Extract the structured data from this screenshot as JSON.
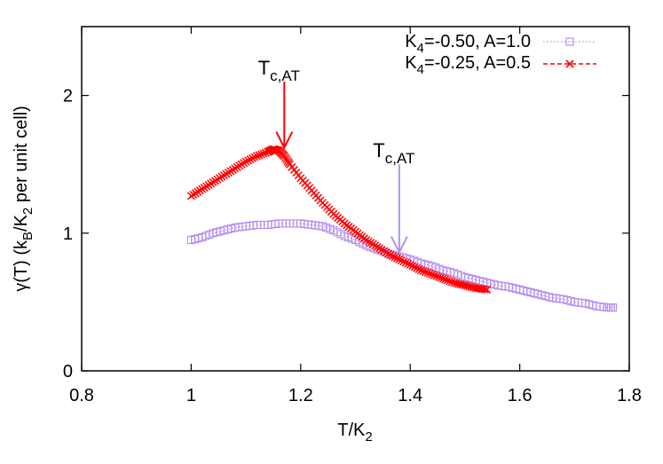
{
  "chart_data": {
    "type": "scatter",
    "xlabel": "T/K2",
    "ylabel": "γ(T) (kB/K2 per unit cell)",
    "xlim": [
      0.8,
      1.8
    ],
    "ylim": [
      0,
      2.5
    ],
    "xticks": [
      "0.8",
      "1",
      "1.2",
      "1.4",
      "1.6",
      "1.8"
    ],
    "yticks": [
      "0",
      "1",
      "2"
    ],
    "grid": false,
    "legend_position": "top-right",
    "series": [
      {
        "name": "K4=-0.50, A=1.0",
        "color": "#b68ff0",
        "marker": "square",
        "line": "dotted",
        "x": [
          1.0,
          1.02,
          1.04,
          1.06,
          1.08,
          1.1,
          1.12,
          1.14,
          1.16,
          1.18,
          1.2,
          1.22,
          1.24,
          1.26,
          1.28,
          1.3,
          1.32,
          1.34,
          1.36,
          1.38,
          1.4,
          1.42,
          1.44,
          1.46,
          1.48,
          1.5,
          1.52,
          1.54,
          1.56,
          1.58,
          1.6,
          1.62,
          1.64,
          1.66,
          1.68,
          1.7,
          1.72,
          1.74,
          1.76,
          1.77
        ],
        "y": [
          0.95,
          0.97,
          1.0,
          1.02,
          1.04,
          1.05,
          1.06,
          1.06,
          1.07,
          1.07,
          1.07,
          1.06,
          1.05,
          1.02,
          0.98,
          0.95,
          0.91,
          0.88,
          0.85,
          0.83,
          0.81,
          0.78,
          0.76,
          0.73,
          0.71,
          0.68,
          0.66,
          0.64,
          0.62,
          0.61,
          0.59,
          0.57,
          0.55,
          0.53,
          0.52,
          0.5,
          0.49,
          0.47,
          0.46,
          0.46
        ]
      },
      {
        "name": "K4=-0.25, A=0.5",
        "color": "#ff0000",
        "marker": "cross",
        "line": "dashed",
        "x": [
          1.0,
          1.02,
          1.04,
          1.06,
          1.08,
          1.1,
          1.12,
          1.14,
          1.15,
          1.16,
          1.17,
          1.18,
          1.2,
          1.22,
          1.24,
          1.26,
          1.28,
          1.3,
          1.32,
          1.34,
          1.36,
          1.38,
          1.4,
          1.42,
          1.44,
          1.46,
          1.48,
          1.5,
          1.52,
          1.54
        ],
        "y": [
          1.27,
          1.32,
          1.37,
          1.42,
          1.47,
          1.52,
          1.56,
          1.59,
          1.61,
          1.6,
          1.56,
          1.5,
          1.4,
          1.31,
          1.22,
          1.14,
          1.07,
          1.01,
          0.95,
          0.9,
          0.85,
          0.81,
          0.77,
          0.73,
          0.7,
          0.67,
          0.64,
          0.62,
          0.6,
          0.59
        ]
      }
    ],
    "annotations": [
      {
        "text": "T",
        "subscript": "c,AT",
        "arrow_x": 1.17,
        "arrow_y_top": 2.1,
        "arrow_y_tip": 1.62,
        "color": "#ff0000"
      },
      {
        "text": "T",
        "subscript": "c,AT",
        "arrow_x": 1.38,
        "arrow_y_top": 1.5,
        "arrow_y_tip": 0.86,
        "color": "#b68ff0"
      }
    ]
  },
  "legend": {
    "items": [
      {
        "k_base": "K",
        "k_sub": "4",
        "rest": "=-0.50, A=1.0"
      },
      {
        "k_base": "K",
        "k_sub": "4",
        "rest": "=-0.25, A=0.5"
      }
    ]
  },
  "axis_labels": {
    "x_base": "T/K",
    "x_sub": "2",
    "y_pre": "γ(T) (k",
    "y_sub1": "B",
    "y_mid": "/K",
    "y_sub2": "2",
    "y_post": " per unit cell)"
  }
}
